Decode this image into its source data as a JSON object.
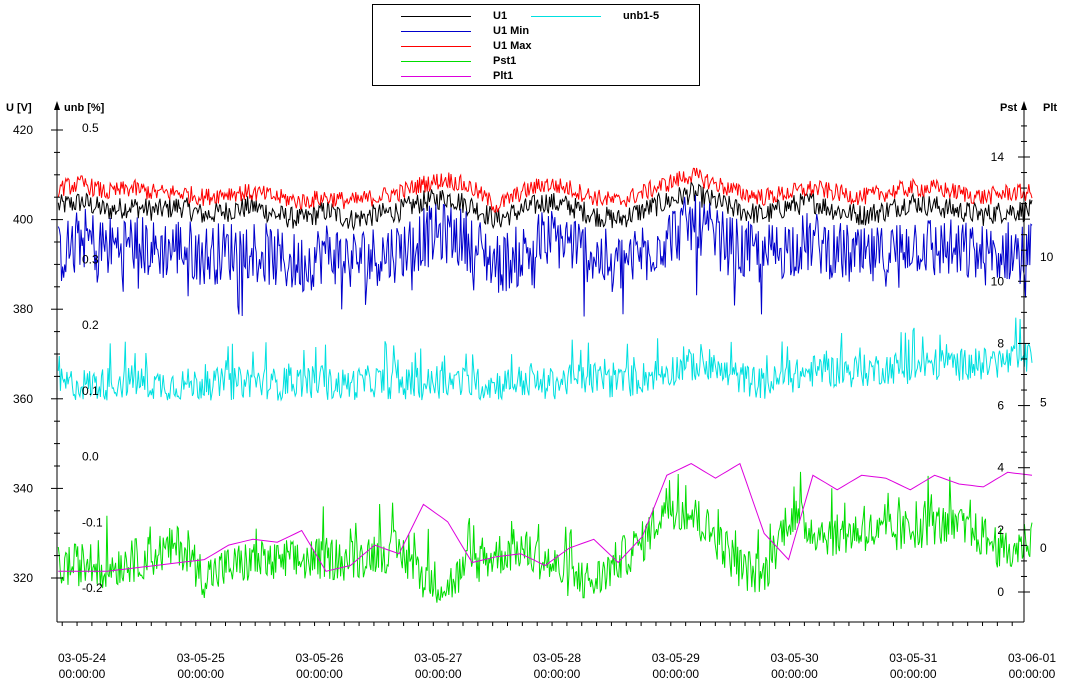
{
  "chart_data": {
    "type": "line",
    "x_ticks": [
      "03-05-24 00:00:00",
      "03-05-25 00:00:00",
      "03-05-26 00:00:00",
      "03-05-27 00:00:00",
      "03-05-28 00:00:00",
      "03-05-29 00:00:00",
      "03-05-30 00:00:00",
      "03-05-31 00:00:00",
      "03-06-01 00:00:00"
    ],
    "x_ticks_line1": [
      "03-05-24",
      "03-05-25",
      "03-05-26",
      "03-05-27",
      "03-05-28",
      "03-05-29",
      "03-05-30",
      "03-05-31",
      "03-06-01"
    ],
    "x_ticks_line2": [
      "00:00:00",
      "00:00:00",
      "00:00:00",
      "00:00:00",
      "00:00:00",
      "00:00:00",
      "00:00:00",
      "00:00:00",
      "00:00:00"
    ],
    "x_range_days": [
      -0.2,
      8.0
    ],
    "axes": {
      "u": {
        "label": "U [V]",
        "range": [
          310,
          420
        ],
        "ticks": [
          320,
          340,
          360,
          380,
          400,
          420
        ]
      },
      "unb": {
        "label": "unb [%]",
        "range": [
          -0.25,
          0.5
        ],
        "ticks": [
          -0.2,
          -0.1,
          0.0,
          0.1,
          0.2,
          0.3,
          0.5
        ]
      },
      "pst": {
        "label": "Pst",
        "range": [
          -0.5,
          16
        ],
        "ticks": [
          0,
          2,
          4,
          6,
          8,
          10,
          14
        ]
      },
      "plt": {
        "label": "Plt",
        "range": [
          -2.5,
          15
        ],
        "ticks": [
          0,
          5,
          10
        ]
      }
    },
    "series": [
      {
        "name": "U1",
        "axis": "u",
        "color": "#000000",
        "base": [
          403,
          404,
          402,
          403,
          402,
          403,
          401,
          402,
          403,
          401,
          400,
          402,
          400,
          401,
          402,
          404,
          405,
          403,
          400,
          402,
          404,
          403,
          401,
          400,
          402,
          404,
          406,
          404,
          402,
          401,
          403,
          404,
          402,
          401,
          402,
          404,
          403,
          402,
          401,
          402,
          402
        ],
        "noise": 2.5
      },
      {
        "name": "U1 Min",
        "axis": "u",
        "color": "#0000cc",
        "base": [
          392,
          396,
          394,
          395,
          393,
          394,
          392,
          393,
          394,
          391,
          390,
          393,
          391,
          392,
          393,
          396,
          397,
          395,
          390,
          392,
          396,
          395,
          392,
          390,
          393,
          396,
          399,
          396,
          393,
          392,
          394,
          395,
          393,
          391,
          392,
          395,
          394,
          393,
          392,
          393,
          393
        ],
        "noise": 7
      },
      {
        "name": "U1 Max",
        "axis": "u",
        "color": "#ff0000",
        "base": [
          407,
          408,
          406,
          407,
          406,
          406,
          405,
          406,
          406,
          405,
          404,
          405,
          404,
          405,
          406,
          408,
          409,
          407,
          403,
          406,
          408,
          407,
          405,
          404,
          406,
          408,
          410,
          408,
          406,
          405,
          406,
          407,
          406,
          405,
          406,
          407,
          407,
          406,
          405,
          406,
          406
        ],
        "noise": 2
      },
      {
        "name": "unb1-5",
        "axis": "unb",
        "color": "#00e0e0",
        "base": [
          0.11,
          0.11,
          0.11,
          0.115,
          0.11,
          0.11,
          0.11,
          0.11,
          0.115,
          0.11,
          0.115,
          0.11,
          0.11,
          0.115,
          0.11,
          0.11,
          0.115,
          0.11,
          0.11,
          0.115,
          0.11,
          0.115,
          0.12,
          0.11,
          0.12,
          0.13,
          0.14,
          0.13,
          0.12,
          0.11,
          0.12,
          0.13,
          0.13,
          0.13,
          0.135,
          0.135,
          0.14,
          0.14,
          0.14,
          0.145,
          0.15
        ],
        "noise": 0.025
      },
      {
        "name": "Pst1",
        "axis": "pst",
        "color": "#00dd00",
        "base": [
          0.8,
          0.9,
          0.8,
          1.0,
          1.2,
          1.5,
          0.5,
          0.8,
          1.0,
          0.9,
          1.0,
          1.1,
          1.0,
          1.3,
          1.3,
          0.5,
          0.2,
          0.9,
          1.2,
          1.4,
          1.0,
          0.5,
          0.3,
          1.0,
          1.6,
          2.8,
          2.5,
          1.8,
          0.8,
          0.5,
          2.5,
          2.0,
          1.8,
          2.0,
          1.8,
          2.0,
          2.2,
          2.0,
          1.8,
          1.2,
          1.8
        ],
        "noise": 0.7
      },
      {
        "name": "Plt1",
        "axis": "plt",
        "color": "#dd00dd",
        "base": [
          -0.8,
          -0.8,
          -0.8,
          -0.7,
          -0.6,
          -0.5,
          -0.4,
          0.1,
          0.3,
          0.2,
          0.6,
          -0.8,
          -0.6,
          0.1,
          -0.2,
          1.5,
          0.9,
          -0.5,
          -0.3,
          -0.2,
          -0.6,
          0.0,
          0.3,
          -0.5,
          0.4,
          2.5,
          2.9,
          2.4,
          2.9,
          0.5,
          -0.4,
          2.5,
          2.0,
          2.5,
          2.4,
          2.0,
          2.5,
          2.2,
          2.1,
          2.6,
          2.5
        ],
        "noise": 0.0
      }
    ]
  },
  "legend": {
    "items": [
      {
        "label": "U1",
        "color": "#000000"
      },
      {
        "label": "U1 Min",
        "color": "#0000cc"
      },
      {
        "label": "U1 Max",
        "color": "#ff0000"
      },
      {
        "label": "Pst1",
        "color": "#00dd00"
      },
      {
        "label": "Plt1",
        "color": "#dd00dd"
      },
      {
        "label": "unb1-5",
        "color": "#00e0e0"
      }
    ]
  }
}
